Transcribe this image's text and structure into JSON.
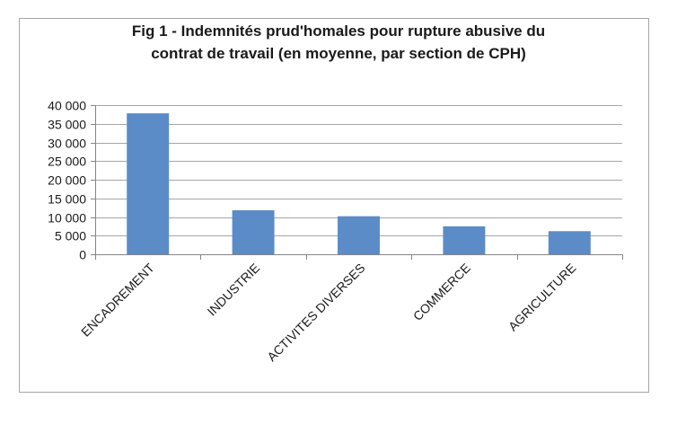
{
  "chart_data": {
    "type": "bar",
    "title_line1": "Fig 1 - Indemnités prud'homales pour rupture abusive du",
    "title_line2": "contrat de travail (en moyenne, par section de CPH)",
    "categories": [
      "ENCADREMENT",
      "INDUSTRIE",
      "ACTIVITES DIVERSES",
      "COMMERCE",
      "AGRICULTURE"
    ],
    "values": [
      37800,
      11800,
      10200,
      7500,
      6200
    ],
    "ylim": [
      0,
      40000
    ],
    "yticks": [
      0,
      5000,
      10000,
      15000,
      20000,
      25000,
      30000,
      35000,
      40000
    ],
    "ytick_labels": [
      "0",
      "5 000",
      "10 000",
      "15 000",
      "20 000",
      "25 000",
      "30 000",
      "35 000",
      "40 000"
    ],
    "grid": true,
    "legend": "none",
    "bar_color": "#5b8cc8",
    "grid_color": "#a6a6a6",
    "axis_color": "#868686"
  }
}
